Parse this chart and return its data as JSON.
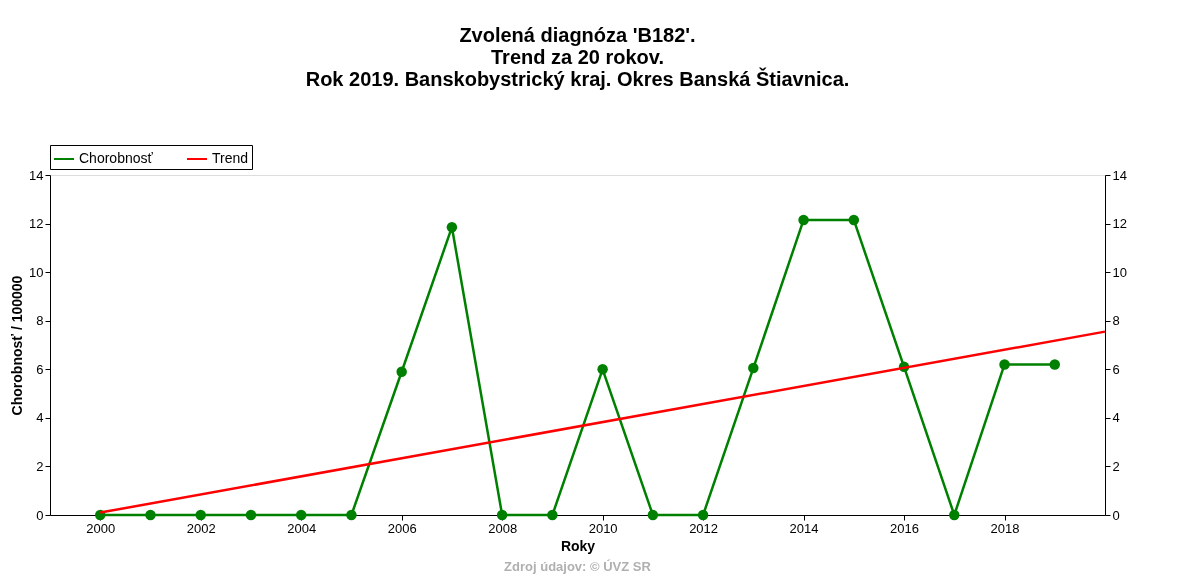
{
  "chart_data": {
    "type": "line",
    "title": "Zvolená diagnóza 'B182'.\nTrend za 20 rokov.\nRok 2019. Banskobystrický kraj. Okres Banská Štiavnica.",
    "xlabel": "Roky",
    "ylabel": "Chorobnosť / 100000",
    "x": [
      2000,
      2001,
      2002,
      2003,
      2004,
      2005,
      2006,
      2007,
      2008,
      2009,
      2010,
      2011,
      2012,
      2013,
      2014,
      2015,
      2016,
      2017,
      2018,
      2019
    ],
    "series": [
      {
        "name": "Chorobnosť",
        "color": "#008000",
        "marker": "circle",
        "values": [
          0,
          0,
          0,
          0,
          0,
          0,
          5.9,
          11.85,
          0,
          0,
          6.0,
          0,
          0,
          6.05,
          12.15,
          12.15,
          6.1,
          0,
          6.2,
          6.2
        ]
      },
      {
        "name": "Trend",
        "color": "#ff0000",
        "marker": "none",
        "x": [
          2000,
          2020
        ],
        "values": [
          0.1,
          7.55
        ]
      }
    ],
    "xlim": [
      1999,
      2020
    ],
    "xticks": [
      2000,
      2002,
      2004,
      2006,
      2008,
      2010,
      2012,
      2014,
      2016,
      2018
    ],
    "ylim": [
      0,
      14
    ],
    "yticks": [
      0,
      2,
      4,
      6,
      8,
      10,
      12,
      14
    ],
    "y2lim": [
      0,
      14
    ],
    "y2ticks": [
      0,
      2,
      4,
      6,
      8,
      10,
      12,
      14
    ],
    "grid": false,
    "legend": "top left",
    "line_style": "solid",
    "annotations": [
      "Zdroj údajov: © ÚVZ SR"
    ]
  }
}
